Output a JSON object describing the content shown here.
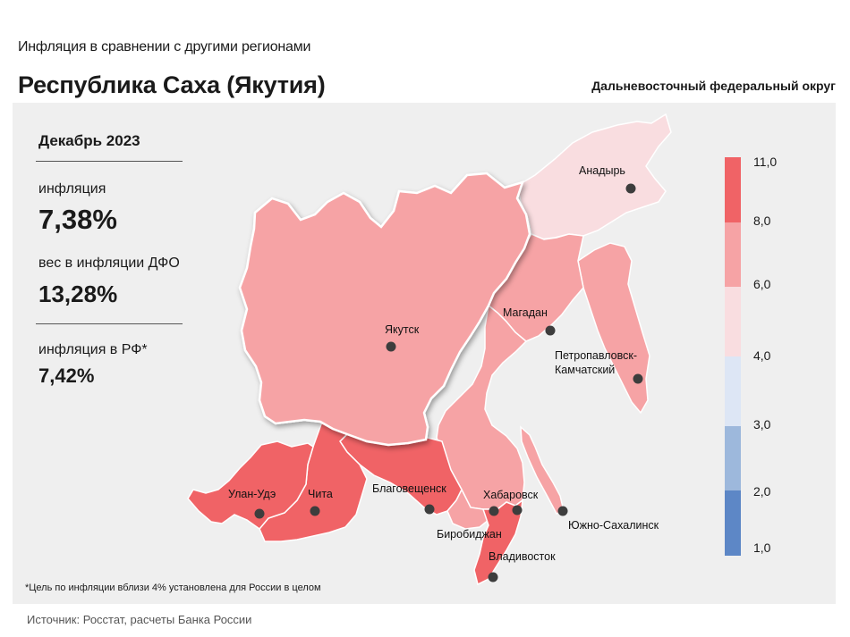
{
  "header": {
    "subtitle": "Инфляция в сравнении с другими регионами",
    "title": "Республика Саха (Якутия)",
    "district": "Дальневосточный федеральный округ"
  },
  "stats": {
    "period": "Декабрь 2023",
    "inflation_label": "инфляция",
    "inflation_value": "7,38%",
    "weight_label": "вес в инфляции ДФО",
    "weight_value": "13,28%",
    "rf_label": "инфляция в РФ*",
    "rf_value": "7,42%"
  },
  "legend": {
    "ticks": [
      "11,0",
      "8,0",
      "6,0",
      "4,0",
      "3,0",
      "2,0",
      "1,0"
    ],
    "colors": [
      "#f06366",
      "#f6a3a5",
      "#f9dde0",
      "#dde6f5",
      "#9db8dc",
      "#5d87c6"
    ]
  },
  "map": {
    "highlighted_region": "Якутск",
    "cities": {
      "anadyr": "Анадырь",
      "yakutsk": "Якутск",
      "magadan": "Магадан",
      "petropavlovsk": "Петропавловск-\nКамчатский",
      "ulan_ude": "Улан-Удэ",
      "chita": "Чита",
      "blagoveshchensk": "Благовещенск",
      "khabarovsk": "Хабаровск",
      "birobidzhan": "Биробиджан",
      "yuzhno": "Южно-Сахалинск",
      "vladivostok": "Владивосток"
    },
    "colors": {
      "high": "#f06366",
      "mid": "#f6a3a5",
      "low": "#f9dde0",
      "border": "#ffffff",
      "panel": "#efefef"
    }
  },
  "footer": {
    "note": "*Цель по инфляции вблизи 4% установлена для России в целом",
    "source": "Источник: Росстат, расчеты Банка России"
  }
}
